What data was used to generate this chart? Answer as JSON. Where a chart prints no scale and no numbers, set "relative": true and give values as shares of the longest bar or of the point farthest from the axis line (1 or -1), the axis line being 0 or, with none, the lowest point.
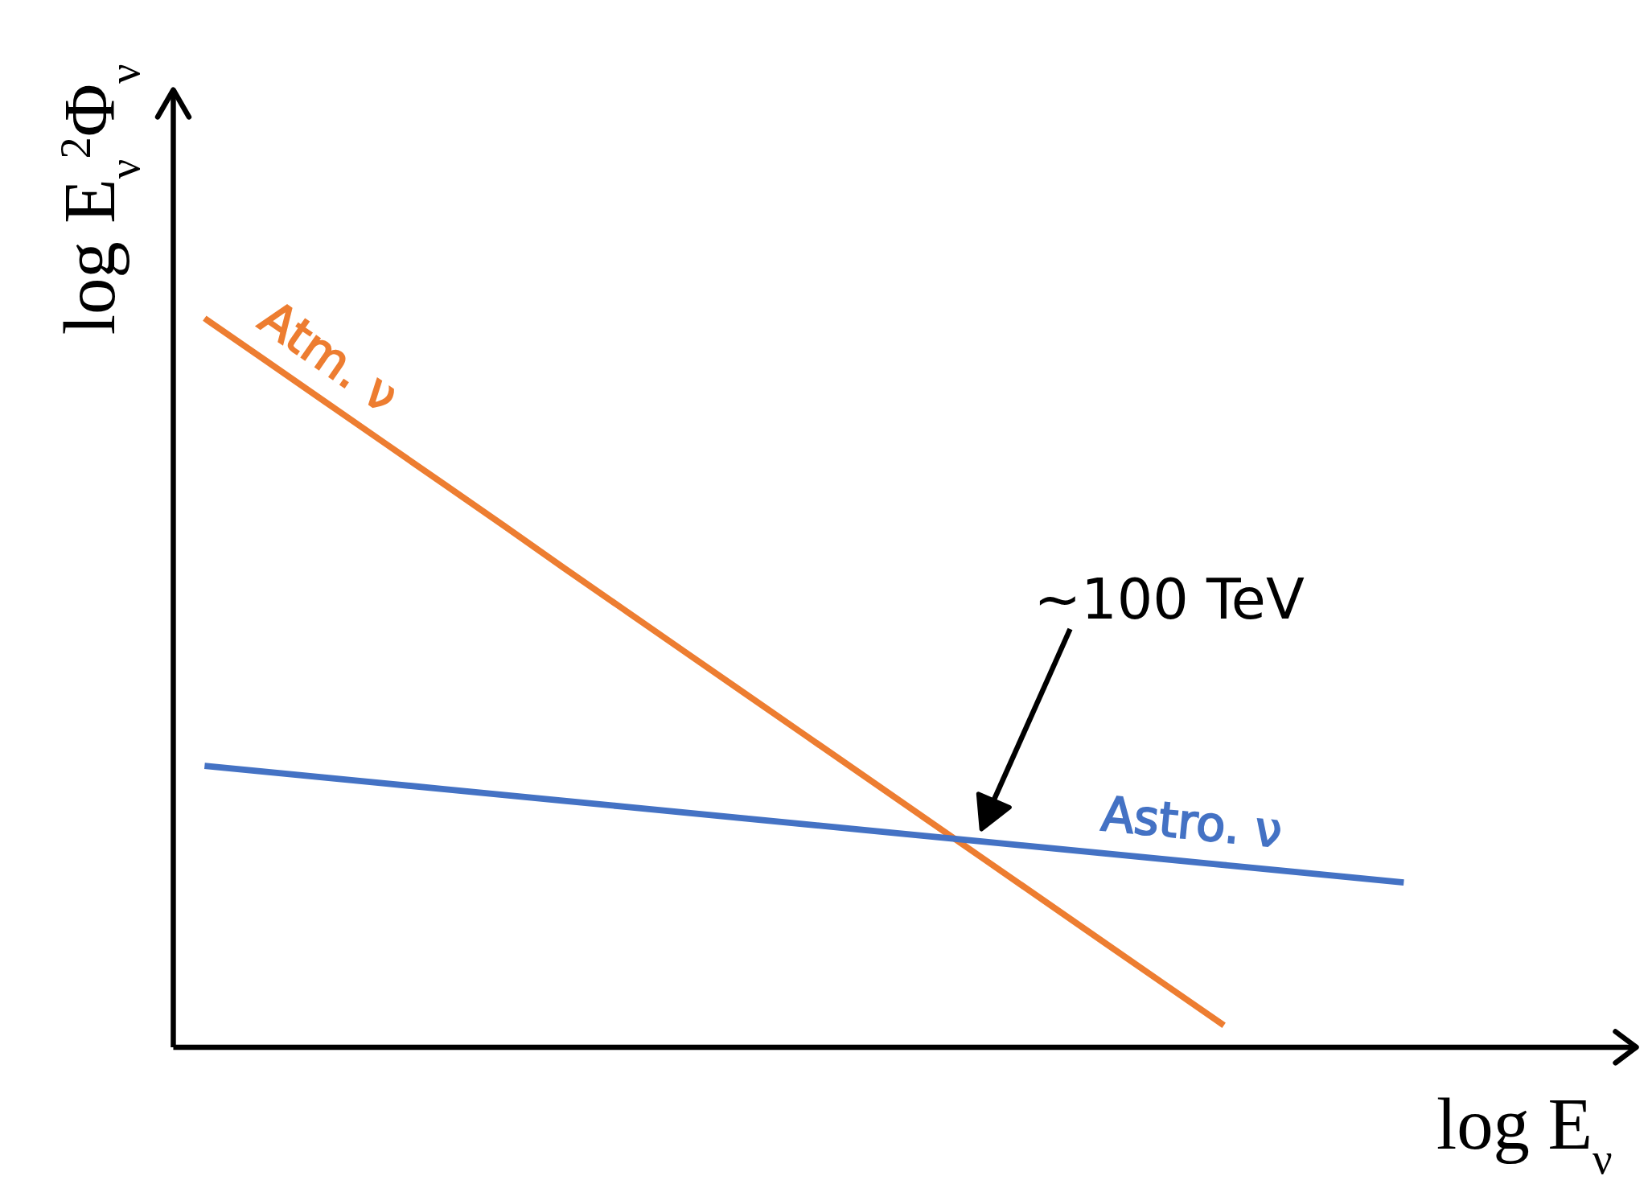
{
  "chart_data": {
    "type": "line",
    "relative": true,
    "xlabel": "log E$_{ν}$",
    "ylabel": "log E$_{ν}$$^{2}$Φ$_{ν}$",
    "marker": "none",
    "line_style": "solid",
    "categories": [
      null,
      null,
      null,
      null,
      null,
      null,
      null,
      null,
      null,
      null,
      null,
      null,
      null,
      null,
      null,
      null,
      null,
      null,
      null,
      null,
      null
    ],
    "series": [
      {
        "name": "Atm. ν",
        "color": "#ed7d31",
        "values": [
          1,
          0.943,
          0.886,
          0.829,
          0.772,
          0.715,
          0.657,
          0.6,
          0.543,
          0.486,
          0.429,
          0.372,
          0.315,
          0.258,
          0.201,
          0.144,
          0.087,
          0.03,
          null,
          null,
          null
        ]
      },
      {
        "name": "Astro. ν",
        "color": "#4472c4",
        "values": [
          0.386,
          0.378,
          0.37,
          0.362,
          0.354,
          0.346,
          0.338,
          0.33,
          0.322,
          0.314,
          0.306,
          0.298,
          0.29,
          0.282,
          0.274,
          0.266,
          0.258,
          0.25,
          0.242,
          0.234,
          0.226
        ]
      }
    ],
    "annotations": [
      "~100 TeV"
    ]
  }
}
